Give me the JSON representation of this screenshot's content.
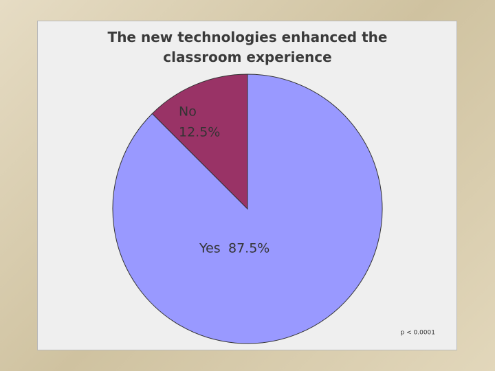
{
  "chart_data": {
    "type": "pie",
    "title": "The new technologies enhanced the classroom experience",
    "categories": [
      "Yes",
      "No"
    ],
    "values": [
      87.5,
      12.5
    ],
    "value_labels": [
      "87.5%",
      "12.5%"
    ],
    "colors": [
      "#9999ff",
      "#993366"
    ],
    "annotation": "p < 0.0001"
  }
}
